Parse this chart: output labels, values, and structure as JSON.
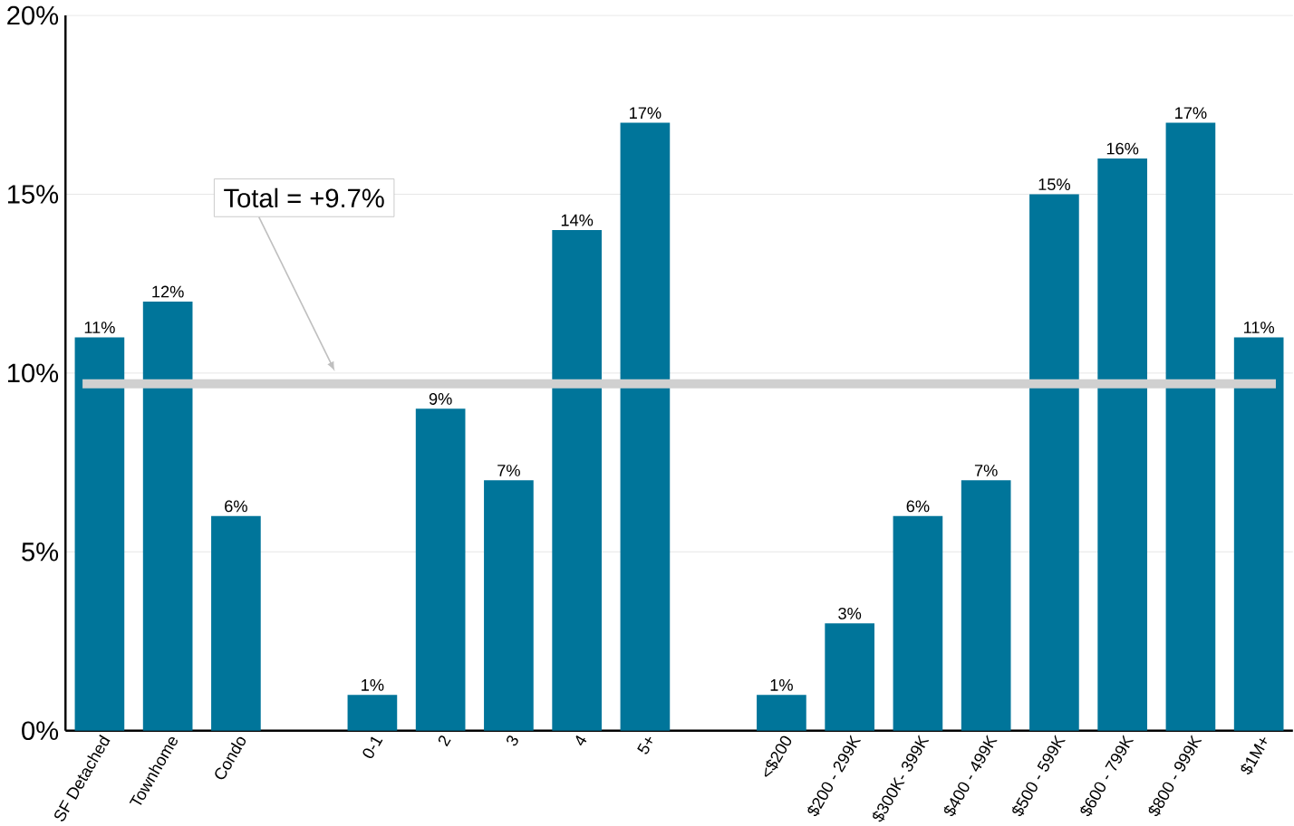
{
  "chart_data": {
    "type": "bar",
    "categories": [
      "SF Detached",
      "Townhome",
      "Condo",
      null,
      "0-1",
      "2",
      "3",
      "4",
      "5+",
      null,
      "<$200",
      "$200 - 299K",
      "$300K- 399K",
      "$400 - 499K",
      "$500 - 599K",
      "$600 - 799K",
      "$800 - 999K",
      "$1M+"
    ],
    "values": [
      11,
      12,
      6,
      null,
      1,
      9,
      7,
      14,
      17,
      null,
      1,
      3,
      6,
      7,
      15,
      16,
      17,
      11
    ],
    "value_labels": [
      "11%",
      "12%",
      "6%",
      null,
      "1%",
      "9%",
      "7%",
      "14%",
      "17%",
      null,
      "1%",
      "3%",
      "6%",
      "7%",
      "15%",
      "16%",
      "17%",
      "11%"
    ],
    "color": "#00759a",
    "ylim": [
      0,
      20
    ],
    "yticks": [
      {
        "value": 0,
        "label": "0%"
      },
      {
        "value": 5,
        "label": "5%"
      },
      {
        "value": 10,
        "label": "10%"
      },
      {
        "value": 15,
        "label": "15%"
      },
      {
        "value": 20,
        "label": "20%"
      }
    ],
    "grid": "y",
    "ref_lines": [
      {
        "axis": "y",
        "value": 9.7,
        "label": "Total = +9.7%",
        "color": "#d0d0d0"
      }
    ]
  }
}
